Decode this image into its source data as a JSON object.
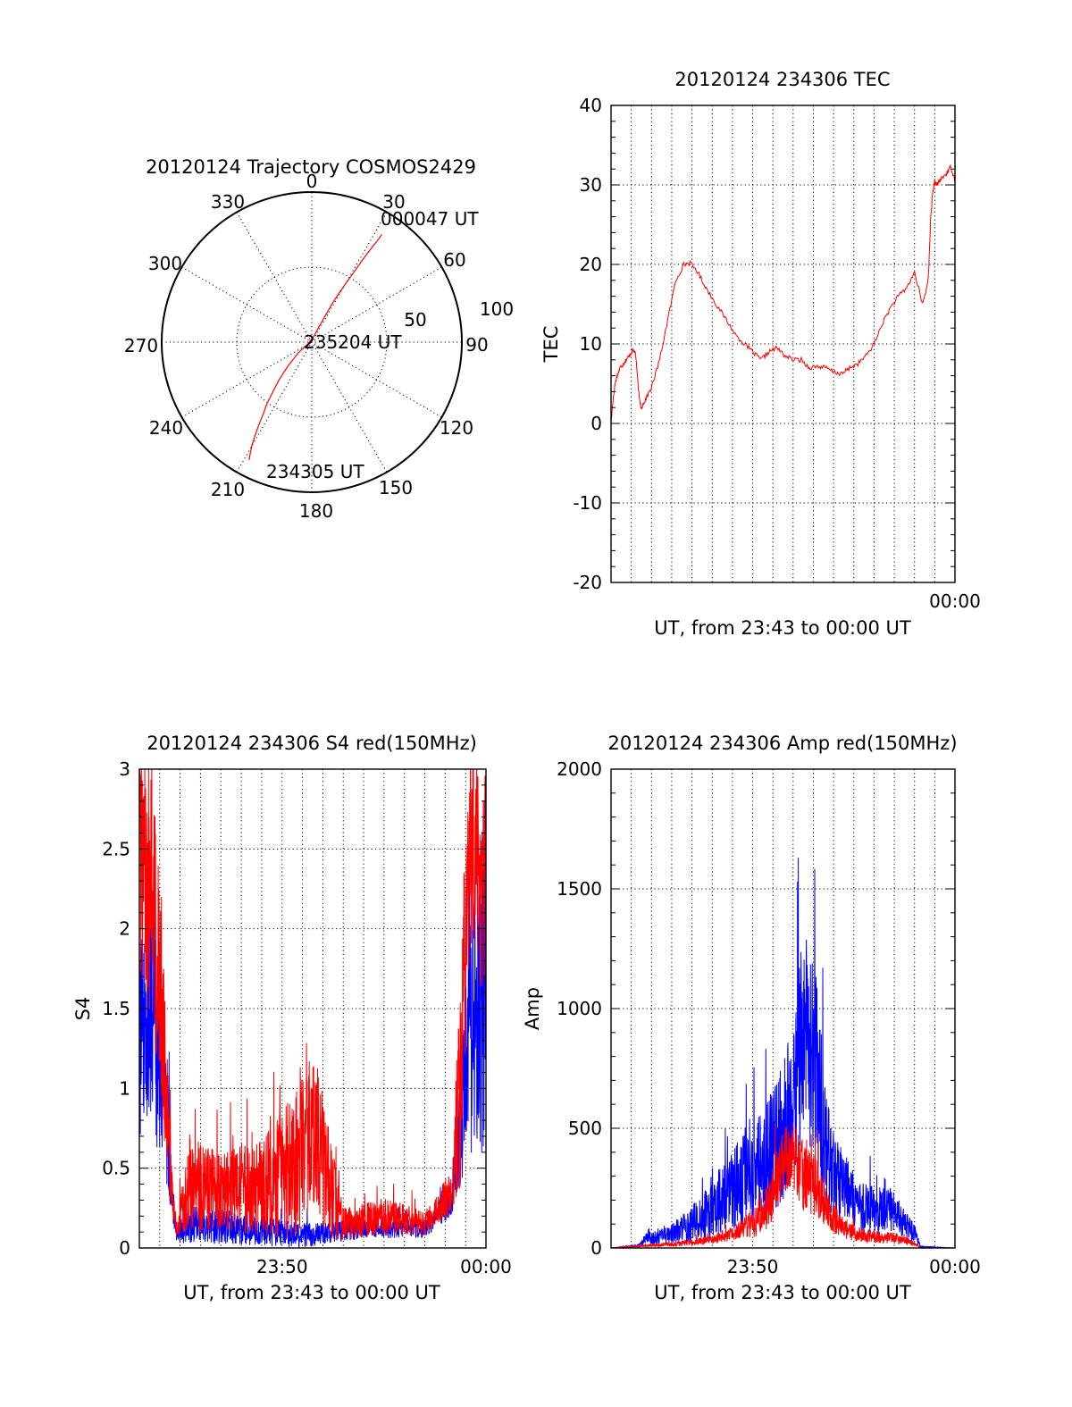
{
  "chart_data": [
    {
      "id": "polar",
      "type": "scatter",
      "title": "20120124 Trajectory COSMOS2429",
      "azimuth_labels": [
        "0",
        "30",
        "60",
        "90",
        "120",
        "150",
        "180",
        "210",
        "240",
        "270",
        "300",
        "330"
      ],
      "radial_labels": [
        "50",
        "100"
      ],
      "annotations": [
        "000047 UT",
        "235204 UT",
        "234305 UT"
      ],
      "trajectory_az_el": [
        [
          208,
          10
        ],
        [
          209,
          14
        ],
        [
          210,
          18
        ],
        [
          211,
          23
        ],
        [
          212,
          28
        ],
        [
          213,
          33
        ],
        [
          214,
          38
        ],
        [
          216,
          44
        ],
        [
          218,
          52
        ],
        [
          221,
          60
        ],
        [
          225,
          70
        ],
        [
          232,
          80
        ],
        [
          242,
          87
        ],
        [
          20,
          86
        ],
        [
          25,
          80
        ],
        [
          27,
          72
        ],
        [
          28,
          64
        ],
        [
          29,
          57
        ],
        [
          30,
          50
        ],
        [
          31,
          42
        ],
        [
          31.5,
          35
        ],
        [
          32,
          28
        ],
        [
          32.5,
          22
        ],
        [
          33,
          16
        ],
        [
          33,
          13
        ]
      ],
      "color": "#ff0000"
    },
    {
      "id": "tec",
      "type": "line",
      "title": "20120124 234306 TEC",
      "xlabel": "UT, from 23:43 to 00:00 UT",
      "ylabel": "TEC",
      "x_ticklabels": [
        {
          "t": 17.0,
          "label": "00:00"
        }
      ],
      "xlim": [
        0,
        17.0
      ],
      "ylim": [
        -20,
        40
      ],
      "yticks": [
        -20,
        -10,
        0,
        10,
        20,
        30,
        40
      ],
      "series": [
        {
          "color": "#ff0000",
          "x": [
            0,
            0.1,
            0.2,
            0.3,
            0.45,
            0.6,
            0.75,
            0.9,
            1.05,
            1.2,
            1.4,
            1.5,
            1.7,
            2.0,
            2.4,
            2.8,
            3.2,
            3.6,
            3.9,
            4.3,
            4.7,
            5.2,
            5.7,
            6.2,
            6.6,
            7.0,
            7.4,
            7.8,
            8.2,
            8.6,
            9.0,
            9.4,
            9.8,
            10.2,
            10.6,
            11.0,
            11.4,
            11.8,
            12.2,
            12.6,
            13.0,
            13.4,
            13.8,
            14.2,
            14.6,
            15.0,
            15.4,
            15.6,
            15.7,
            15.8,
            15.9,
            16.0,
            16.1,
            16.25,
            16.4,
            16.6,
            16.8,
            17.0
          ],
          "y": [
            0,
            3,
            5,
            6,
            7,
            7.5,
            8,
            8.5,
            9.2,
            9,
            3,
            2,
            3,
            4.5,
            8,
            13,
            18,
            20,
            20.2,
            19,
            17,
            15,
            13,
            11,
            10,
            9,
            8,
            9,
            9.5,
            8.5,
            8,
            8,
            7,
            7.2,
            7,
            6.5,
            6.2,
            7,
            7.5,
            8.5,
            10,
            12.5,
            14.5,
            16,
            17,
            19,
            15,
            17,
            19,
            26,
            29,
            30.5,
            30,
            30.5,
            31,
            31.5,
            32.3,
            30.5
          ]
        }
      ]
    },
    {
      "id": "s4",
      "type": "line",
      "title": "20120124 234306 S4 red(150MHz)",
      "xlabel": "UT, from 23:43 to 00:00 UT",
      "ylabel": "S4",
      "x_ticklabels": [
        {
          "t": 7.0,
          "label": "23:50"
        },
        {
          "t": 17.0,
          "label": "00:00"
        }
      ],
      "xlim": [
        0,
        17.0
      ],
      "ylim": [
        0,
        3
      ],
      "yticks": [
        {
          "v": 0,
          "label": "0"
        },
        {
          "v": 0.5,
          "label": "0.5"
        },
        {
          "v": 1,
          "label": "1"
        },
        {
          "v": 1.5,
          "label": "1.5"
        },
        {
          "v": 2,
          "label": "2"
        },
        {
          "v": 2.5,
          "label": "2.5"
        },
        {
          "v": 3,
          "label": "3"
        }
      ],
      "series": [
        {
          "name": "blue",
          "color": "#0000ff",
          "envelope": [
            [
              0,
              1.3,
              0.6
            ],
            [
              0.7,
              1.4,
              0.7
            ],
            [
              1.3,
              0.9,
              0.5
            ],
            [
              1.6,
              0.35,
              0.15
            ],
            [
              1.8,
              0.08,
              0.05
            ],
            [
              2.5,
              0.15,
              0.12
            ],
            [
              5,
              0.12,
              0.1
            ],
            [
              8,
              0.08,
              0.08
            ],
            [
              11,
              0.12,
              0.06
            ],
            [
              14,
              0.12,
              0.06
            ],
            [
              15.3,
              0.3,
              0.1
            ],
            [
              15.8,
              0.8,
              0.4
            ],
            [
              16.2,
              1.3,
              0.8
            ],
            [
              17,
              1.6,
              1.0
            ]
          ]
        },
        {
          "name": "red",
          "color": "#ff0000",
          "envelope": [
            [
              0,
              2.4,
              0.8
            ],
            [
              0.7,
              2.2,
              0.8
            ],
            [
              1.3,
              1.0,
              0.5
            ],
            [
              1.6,
              0.35,
              0.15
            ],
            [
              1.8,
              0.1,
              0.05
            ],
            [
              2.5,
              0.4,
              0.3
            ],
            [
              4,
              0.35,
              0.25
            ],
            [
              6,
              0.38,
              0.3
            ],
            [
              7.5,
              0.5,
              0.45
            ],
            [
              8.6,
              0.75,
              0.5
            ],
            [
              9.5,
              0.3,
              0.3
            ],
            [
              10,
              0.15,
              0.1
            ],
            [
              12,
              0.2,
              0.12
            ],
            [
              14,
              0.15,
              0.08
            ],
            [
              15.3,
              0.35,
              0.15
            ],
            [
              15.8,
              1.2,
              0.8
            ],
            [
              16.2,
              2.5,
              0.6
            ],
            [
              17,
              2.3,
              0.8
            ]
          ]
        }
      ]
    },
    {
      "id": "amp",
      "type": "line",
      "title": "20120124 234306 Amp red(150MHz)",
      "xlabel": "UT, from 23:43 to 00:00 UT",
      "ylabel": "Amp",
      "x_ticklabels": [
        {
          "t": 7.0,
          "label": "23:50"
        },
        {
          "t": 17.0,
          "label": "00:00"
        }
      ],
      "xlim": [
        0,
        17.0
      ],
      "ylim": [
        0,
        2000
      ],
      "yticks": [
        0,
        500,
        1000,
        1500,
        2000
      ],
      "series": [
        {
          "name": "blue",
          "color": "#0000ff",
          "envelope": [
            [
              0,
              0,
              0
            ],
            [
              1.4,
              10,
              5
            ],
            [
              1.8,
              50,
              30
            ],
            [
              2.2,
              40,
              30
            ],
            [
              3,
              60,
              40
            ],
            [
              4,
              100,
              80
            ],
            [
              5,
              160,
              120
            ],
            [
              6,
              250,
              180
            ],
            [
              7,
              300,
              220
            ],
            [
              7.8,
              380,
              250
            ],
            [
              8.6,
              500,
              300
            ],
            [
              9.2,
              750,
              400
            ],
            [
              9.6,
              900,
              450
            ],
            [
              10.0,
              850,
              450
            ],
            [
              10.5,
              500,
              300
            ],
            [
              11,
              300,
              180
            ],
            [
              12,
              200,
              120
            ],
            [
              13,
              150,
              100
            ],
            [
              13.8,
              170,
              100
            ],
            [
              14.5,
              100,
              60
            ],
            [
              15,
              60,
              40
            ],
            [
              15.3,
              5,
              3
            ],
            [
              17,
              0,
              0
            ]
          ]
        },
        {
          "name": "red",
          "color": "#ff0000",
          "envelope": [
            [
              0,
              0,
              0
            ],
            [
              1.8,
              10,
              5
            ],
            [
              3,
              15,
              10
            ],
            [
              4,
              25,
              15
            ],
            [
              5,
              35,
              20
            ],
            [
              6,
              60,
              30
            ],
            [
              7,
              100,
              60
            ],
            [
              7.8,
              180,
              100
            ],
            [
              8.4,
              350,
              150
            ],
            [
              8.9,
              400,
              160
            ],
            [
              9.5,
              300,
              150
            ],
            [
              10.2,
              250,
              120
            ],
            [
              10.8,
              150,
              80
            ],
            [
              11.5,
              80,
              40
            ],
            [
              12.5,
              50,
              30
            ],
            [
              14,
              40,
              25
            ],
            [
              15,
              20,
              10
            ],
            [
              15.3,
              0,
              0
            ],
            [
              17,
              0,
              0
            ]
          ]
        }
      ]
    }
  ]
}
